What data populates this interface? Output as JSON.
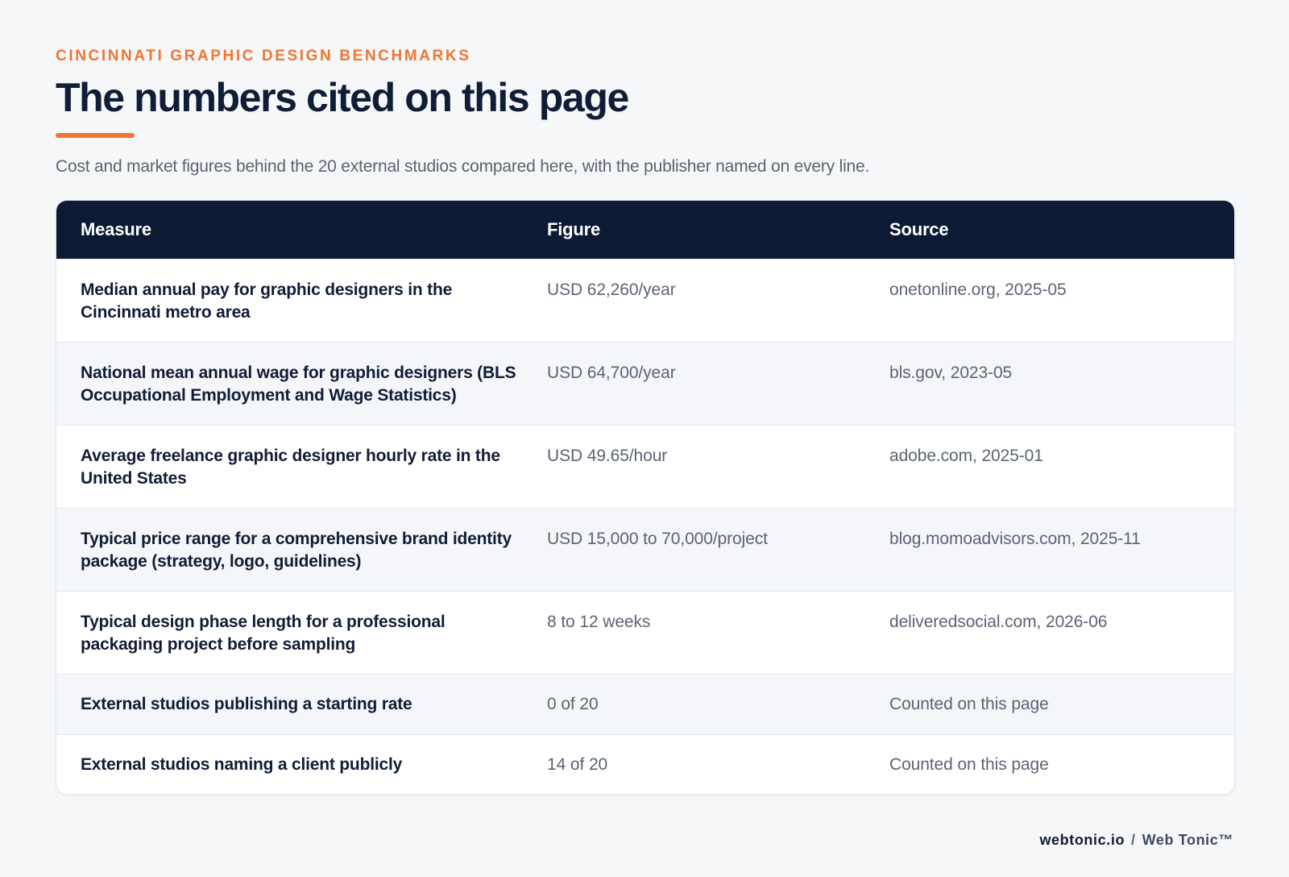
{
  "header": {
    "eyebrow": "CINCINNATI GRAPHIC DESIGN BENCHMARKS",
    "title": "The numbers cited on this page",
    "subtitle": "Cost and market figures behind the 20 external studios compared here, with the publisher named on every line.",
    "accent_color": "#f07632"
  },
  "table": {
    "columns": [
      "Measure",
      "Figure",
      "Source"
    ],
    "header_bg": "#0c1a33",
    "rows": [
      {
        "measure": "Median annual pay for graphic designers in the Cincinnati metro area",
        "figure": "USD 62,260/year",
        "source": "onetonline.org, 2025-05"
      },
      {
        "measure": "National mean annual wage for graphic designers (BLS Occupational Employment and Wage Statistics)",
        "figure": "USD 64,700/year",
        "source": "bls.gov, 2023-05"
      },
      {
        "measure": "Average freelance graphic designer hourly rate in the United States",
        "figure": "USD 49.65/hour",
        "source": "adobe.com, 2025-01"
      },
      {
        "measure": "Typical price range for a comprehensive brand identity package (strategy, logo, guidelines)",
        "figure": "USD 15,000 to 70,000/project",
        "source": "blog.momoadvisors.com, 2025-11"
      },
      {
        "measure": "Typical design phase length for a professional packaging project before sampling",
        "figure": "8 to 12 weeks",
        "source": "deliveredsocial.com, 2026-06"
      },
      {
        "measure": "External studios publishing a starting rate",
        "figure": "0 of 20",
        "source": "Counted on this page"
      },
      {
        "measure": "External studios naming a client publicly",
        "figure": "14 of 20",
        "source": "Counted on this page"
      }
    ]
  },
  "footer": {
    "domain": "webtonic.io",
    "separator": "/",
    "brand": "Web Tonic™"
  }
}
